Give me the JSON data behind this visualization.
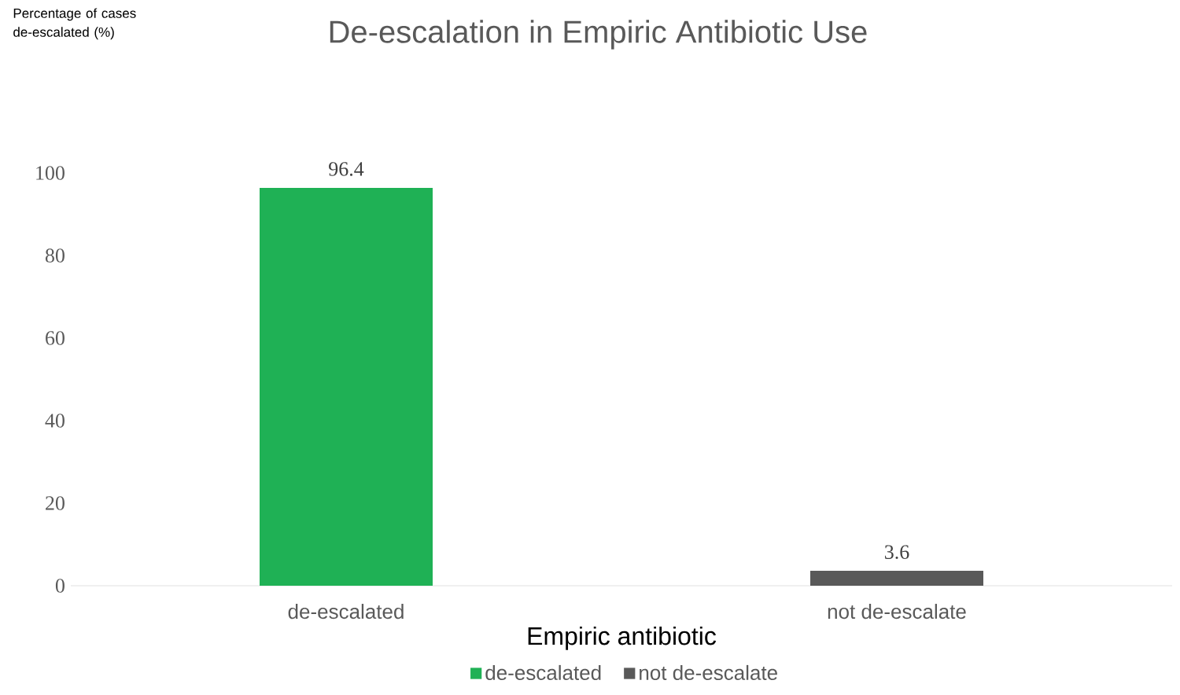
{
  "chart_data": {
    "type": "bar",
    "title": "De-escalation in Empiric Antibiotic Use",
    "xlabel": "Empiric antibiotic",
    "annotations": [
      "Percentage of cases de-escalated (%)"
    ],
    "categories": [
      "de-escalated",
      "not de-escalate"
    ],
    "series": [
      {
        "name": "de-escalated",
        "color": "#1fb155",
        "values": [
          96.4,
          null
        ]
      },
      {
        "name": "not de-escalate",
        "color": "#595959",
        "values": [
          null,
          3.6
        ]
      }
    ],
    "ylim": [
      0,
      100
    ],
    "yticks": [
      0,
      20,
      40,
      60,
      80,
      100
    ],
    "data_labels": true,
    "legend": "bottom"
  }
}
